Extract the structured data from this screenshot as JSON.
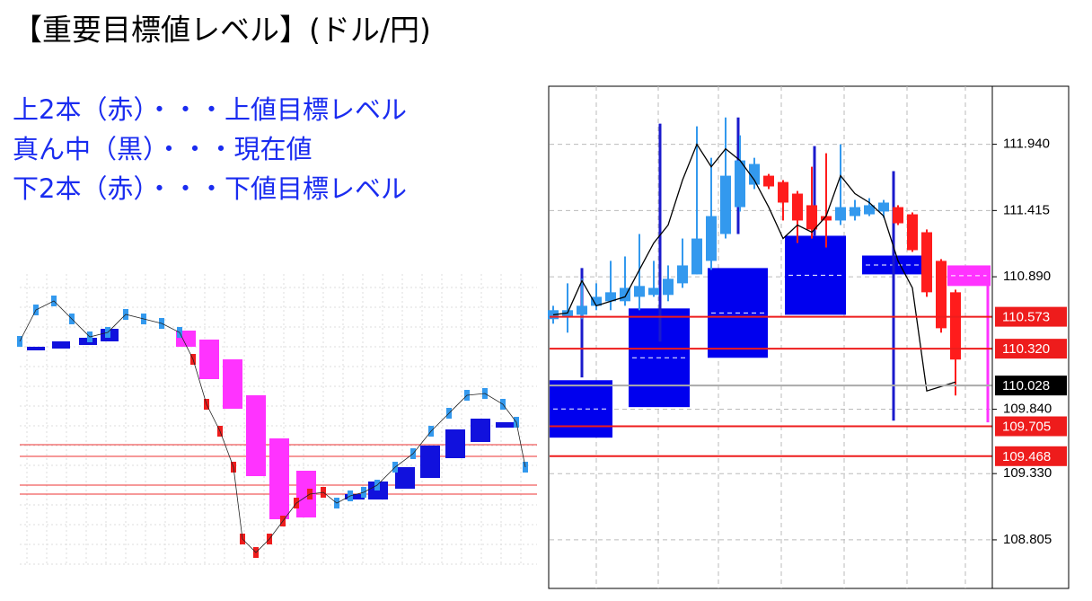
{
  "header": {
    "title": "【重要目標値レベル】(ドル/円)"
  },
  "notes": [
    "上2本（赤）・・・上値目標レベル",
    "真ん中（黒）・・・現在値",
    "下2本（赤）・・・下値目標レベル"
  ],
  "chart_data": {
    "type": "candlestick",
    "ylim": [
      108.42,
      112.4
    ],
    "yticks": [
      {
        "value": 111.94,
        "label": "111.940"
      },
      111.415,
      {
        "value": 110.89,
        "label": "110.890"
      },
      {
        "value": 109.84,
        "label": "109.840"
      },
      {
        "value": 109.33,
        "label": "109.330"
      },
      108.805
    ],
    "grid": true,
    "up_color": "#3399ee",
    "down_color": "#ff1c1c",
    "open": [
      110.554,
      110.575,
      110.589,
      110.66,
      110.696,
      110.696,
      110.731,
      110.746,
      110.746,
      110.838,
      110.909,
      111.016,
      111.229,
      111.442,
      111.62,
      111.691,
      111.641,
      111.549,
      111.457,
      111.371,
      111.336,
      111.371,
      111.385,
      111.407,
      111.442,
      111.385,
      111.243,
      111.016,
      110.767
    ],
    "high": [
      110.66,
      110.838,
      110.874,
      110.838,
      111.016,
      111.051,
      111.229,
      111.016,
      110.98,
      111.193,
      112.082,
      111.833,
      112.153,
      112.011,
      111.833,
      111.705,
      111.656,
      111.57,
      111.762,
      111.869,
      111.94,
      111.499,
      111.513,
      111.499,
      111.457,
      111.4,
      111.265,
      111.03,
      110.788
    ],
    "low": [
      110.518,
      110.447,
      110.554,
      110.625,
      110.625,
      110.66,
      110.625,
      110.731,
      110.696,
      110.802,
      110.909,
      110.945,
      111.193,
      111.407,
      111.585,
      111.585,
      111.336,
      111.158,
      111.193,
      111.122,
      111.3,
      111.336,
      111.371,
      111.357,
      111.3,
      111.087,
      110.731,
      110.447,
      109.949
    ],
    "close": [
      110.625,
      110.625,
      110.66,
      110.731,
      110.767,
      110.802,
      110.817,
      110.802,
      110.874,
      110.98,
      111.193,
      111.371,
      111.691,
      111.812,
      111.784,
      111.606,
      111.478,
      111.336,
      111.265,
      111.336,
      111.442,
      111.442,
      111.457,
      111.478,
      111.314,
      111.101,
      110.767,
      110.482,
      110.234
    ],
    "line": {
      "color": "#000000",
      "values": [
        110.589,
        110.603,
        110.859,
        110.66,
        110.696,
        110.731,
        110.945,
        111.158,
        111.3,
        111.656,
        111.94,
        111.762,
        111.904,
        111.812,
        111.656,
        111.442,
        111.193,
        111.3,
        111.243,
        111.371,
        111.691,
        111.549,
        111.478,
        111.371,
        111.016,
        110.802,
        109.985,
        110.02,
        110.056
      ]
    },
    "boxes": [
      {
        "top": 110.07,
        "bottom": 109.615,
        "color": "#0000ee"
      },
      {
        "top": 110.639,
        "bottom": 109.857,
        "color": "#0000ee"
      },
      {
        "top": 110.959,
        "bottom": 110.248,
        "color": "#0000ee"
      },
      {
        "top": 111.215,
        "bottom": 110.589,
        "color": "#0000ee"
      },
      {
        "top": 111.058,
        "bottom": 110.909,
        "color": "#0000ee"
      },
      {
        "top": 110.98,
        "bottom": 110.817,
        "color": "#ff33ff"
      }
    ],
    "spikes": [
      {
        "high": 110.959,
        "low": 110.092,
        "color": "#1a1acc"
      },
      {
        "high": 112.104,
        "low": 110.376,
        "color": "#1a1acc"
      },
      {
        "high": 112.153,
        "low": 111.229,
        "color": "#1a1acc"
      },
      {
        "high": 111.926,
        "low": 111.215,
        "color": "#1a1acc"
      },
      {
        "high": 111.727,
        "low": 109.75,
        "color": "#1a1acc"
      },
      {
        "high": 110.945,
        "low": 109.736,
        "color": "#ff33ff"
      }
    ],
    "levels": [
      {
        "value": 110.573,
        "color": "#ee1c1c"
      },
      {
        "value": 110.32,
        "label": "110.320",
        "color": "#ee1c1c"
      },
      {
        "value": 110.028,
        "color": "#000000"
      },
      {
        "value": 109.705,
        "color": "#ee1c1c"
      },
      {
        "value": 109.468,
        "color": "#ee1c1c"
      }
    ]
  }
}
